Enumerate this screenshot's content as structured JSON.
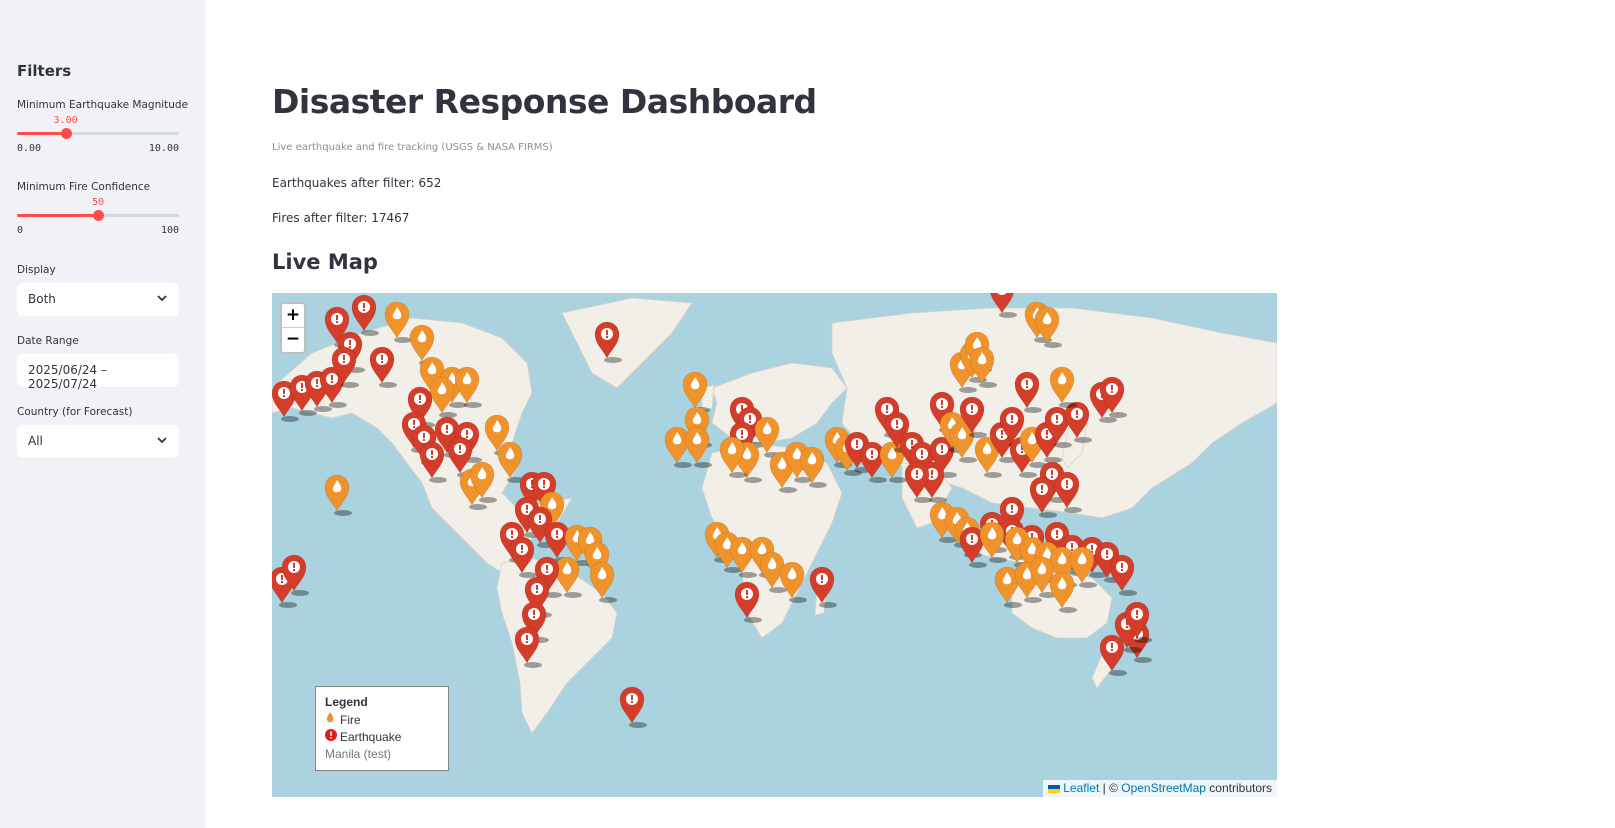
{
  "sidebar": {
    "title": "Filters",
    "magnitude": {
      "label": "Minimum Earthquake Magnitude",
      "value": "3.00",
      "min": "0.00",
      "max": "10.00",
      "fraction": 0.3
    },
    "confidence": {
      "label": "Minimum Fire Confidence",
      "value": "50",
      "min": "0",
      "max": "100",
      "fraction": 0.5
    },
    "display": {
      "label": "Display",
      "value": "Both"
    },
    "date_range": {
      "label": "Date Range",
      "value": "2025/06/24 – 2025/07/24"
    },
    "country": {
      "label": "Country (for Forecast)",
      "value": "All"
    }
  },
  "main": {
    "title": "Disaster Response Dashboard",
    "caption": "Live earthquake and fire tracking (USGS & NASA FIRMS)",
    "earthquakes_stat": "Earthquakes after filter: 652",
    "fires_stat": "Fires after filter: 17467",
    "map_heading": "Live Map"
  },
  "map": {
    "zoom_in": "+",
    "zoom_out": "−",
    "legend": {
      "title": "Legend",
      "fire": "Fire",
      "earthquake": "Earthquake",
      "note": "Manila (test)"
    },
    "attribution": {
      "leaflet": "Leaflet",
      "sep": " | © ",
      "osm": "OpenStreetMap",
      "suffix": " contributors"
    },
    "colors": {
      "fire": "#f0932b",
      "earthquake": "#d33d29",
      "water": "#aad3df",
      "land": "#f2efe9"
    }
  }
}
